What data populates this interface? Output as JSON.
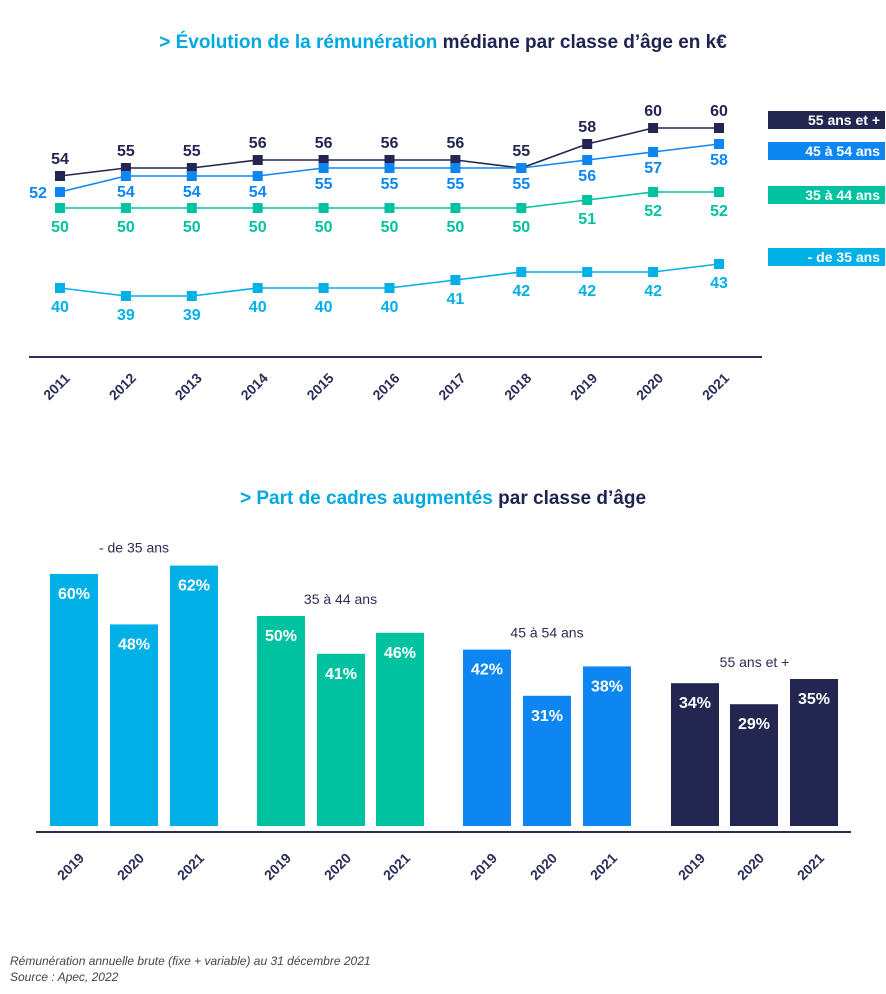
{
  "chart1_title": {
    "accent": "> Évolution de la rémunération",
    "rest": " médiane par classe d’âge en k€"
  },
  "chart2_title": {
    "accent": "> Part de cadres augmentés",
    "rest": " par classe d’âge"
  },
  "footnotes": [
    "Rémunération annuelle brute (fixe + variable) au 31 décembre 2021",
    "Source : Apec, 2022"
  ],
  "colors": {
    "55plus": "#222650",
    "45to54": "#0d86f2",
    "35to44": "#00c2a0",
    "under35": "#00b0e6",
    "axis": "#2a2d55"
  },
  "chart_data": [
    {
      "type": "line",
      "title": "> Évolution de la rémunération médiane par classe d’âge en k€",
      "x": [
        "2011",
        "2012",
        "2013",
        "2014",
        "2015",
        "2016",
        "2017",
        "2018",
        "2019",
        "2020",
        "2021"
      ],
      "series": [
        {
          "name": "55 ans et +",
          "values": [
            54,
            55,
            55,
            56,
            56,
            56,
            56,
            55,
            58,
            60,
            60
          ]
        },
        {
          "name": "45 à 54 ans",
          "values": [
            52,
            54,
            54,
            54,
            55,
            55,
            55,
            55,
            56,
            57,
            58
          ]
        },
        {
          "name": "35 à 44 ans",
          "values": [
            50,
            50,
            50,
            50,
            50,
            50,
            50,
            50,
            51,
            52,
            52
          ]
        },
        {
          "name": "- de 35 ans",
          "values": [
            40,
            39,
            39,
            40,
            40,
            40,
            41,
            42,
            42,
            42,
            43
          ]
        }
      ],
      "legend": "right",
      "grid": false
    },
    {
      "type": "bar",
      "title": "> Part de cadres augmentés par classe d’âge",
      "groups": [
        {
          "name": "- de 35 ans",
          "categories": [
            "2019",
            "2020",
            "2021"
          ],
          "values": [
            60,
            48,
            62
          ]
        },
        {
          "name": "35 à 44 ans",
          "categories": [
            "2019",
            "2020",
            "2021"
          ],
          "values": [
            50,
            41,
            46
          ]
        },
        {
          "name": "45 à 54 ans",
          "categories": [
            "2019",
            "2020",
            "2021"
          ],
          "values": [
            42,
            31,
            38
          ]
        },
        {
          "name": "55 ans et +",
          "categories": [
            "2019",
            "2020",
            "2021"
          ],
          "values": [
            34,
            29,
            35
          ]
        }
      ],
      "unit": "%",
      "grid": false
    }
  ]
}
